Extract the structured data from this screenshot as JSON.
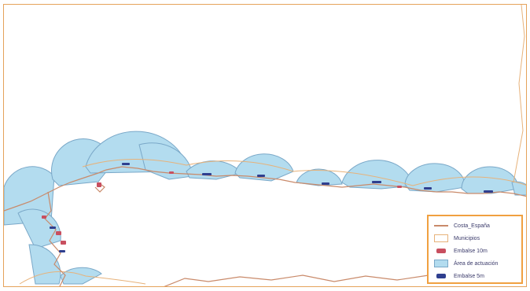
{
  "map": {
    "colors": {
      "coast_line": "#c98a6a",
      "municipal_border": "#e7b27a",
      "action_area_fill": "#b3dcef",
      "action_area_stroke": "#7aa8c8",
      "dam_10m": "#c84f5f",
      "dam_5m": "#2f3f8f",
      "frame": "#e5a25a"
    }
  },
  "legend": {
    "items": [
      {
        "label": "Costa_España",
        "symbol": "line",
        "color": "#c98a6a"
      },
      {
        "label": "Municipios",
        "symbol": "box",
        "color": "#e7b27a"
      },
      {
        "label": "Embalse 10m",
        "symbol": "blob",
        "color": "#c84f5f"
      },
      {
        "label": "Área de actuación",
        "symbol": "fill",
        "color": "#b3dcef"
      },
      {
        "label": "Embalse 5m",
        "symbol": "blob",
        "color": "#2f3f8f"
      }
    ]
  }
}
